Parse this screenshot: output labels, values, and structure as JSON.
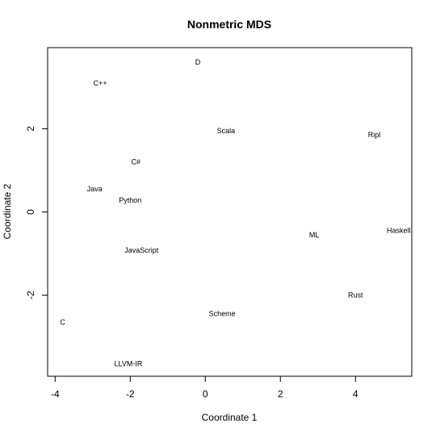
{
  "chart_data": {
    "type": "scatter",
    "title": "Nonmetric MDS",
    "xlabel": "Coordinate 1",
    "ylabel": "Coordinate 2",
    "xlim": [
      -4.2,
      5.5
    ],
    "ylim": [
      -3.95,
      3.95
    ],
    "xticks": [
      -4,
      -2,
      0,
      2,
      4
    ],
    "yticks": [
      -2,
      0,
      2
    ],
    "grid": false,
    "points": [
      {
        "label": "D",
        "x": -0.2,
        "y": 3.6
      },
      {
        "label": "C++",
        "x": -2.8,
        "y": 3.1
      },
      {
        "label": "Scala",
        "x": 0.55,
        "y": 1.95
      },
      {
        "label": "Ripl",
        "x": 4.5,
        "y": 1.85
      },
      {
        "label": "C#",
        "x": -1.85,
        "y": 1.2
      },
      {
        "label": "Java",
        "x": -2.95,
        "y": 0.55
      },
      {
        "label": "Python",
        "x": -2.0,
        "y": 0.28
      },
      {
        "label": "Haskell",
        "x": 5.15,
        "y": -0.45
      },
      {
        "label": "ML",
        "x": 2.9,
        "y": -0.55
      },
      {
        "label": "JavaScript",
        "x": -1.7,
        "y": -0.92
      },
      {
        "label": "Rust",
        "x": 4.0,
        "y": -2.0
      },
      {
        "label": "Scheme",
        "x": 0.45,
        "y": -2.45
      },
      {
        "label": "C",
        "x": -3.8,
        "y": -2.65
      },
      {
        "label": "LLVM-IR",
        "x": -2.05,
        "y": -3.65
      }
    ]
  }
}
